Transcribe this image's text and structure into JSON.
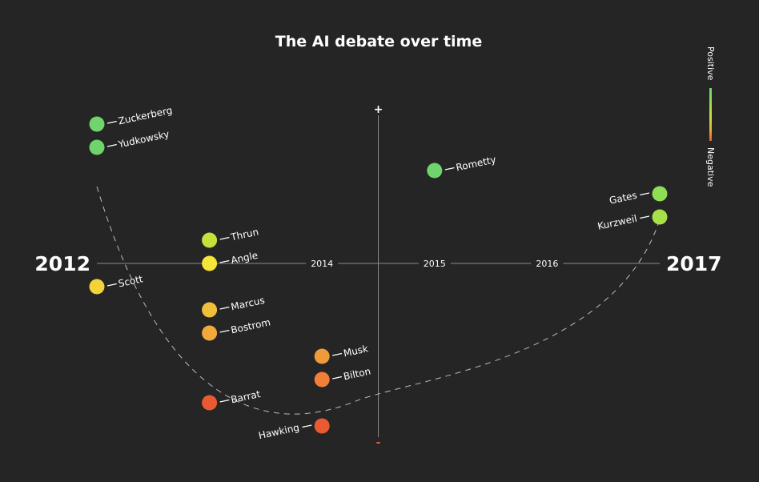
{
  "chart_data": {
    "type": "scatter",
    "title": "The AI debate over time",
    "x_ticks": [
      {
        "year": 2012,
        "label": "2012",
        "style": "big"
      },
      {
        "year": 2014,
        "label": "2014",
        "style": "small"
      },
      {
        "year": 2015,
        "label": "2015",
        "style": "small"
      },
      {
        "year": 2016,
        "label": "2016",
        "style": "small"
      },
      {
        "year": 2017,
        "label": "2017",
        "style": "big"
      }
    ],
    "xlim": [
      2012,
      2017
    ],
    "ylim": [
      -4,
      4
    ],
    "y_axis_year": 2014.5,
    "y_axis_top_label": "+",
    "y_axis_bottom_label": "-",
    "legend": {
      "positive": "Positive",
      "negative": "Negative",
      "placement": "top-right"
    },
    "points": [
      {
        "name": "Zuckerberg",
        "year": 2012,
        "sentiment": 3.0,
        "color": "#6fd46b",
        "label_side": "right"
      },
      {
        "name": "Yudkowsky",
        "year": 2012,
        "sentiment": 2.5,
        "color": "#6fd46b",
        "label_side": "right"
      },
      {
        "name": "Scott",
        "year": 2012,
        "sentiment": -0.5,
        "color": "#f2d33a",
        "label_side": "right"
      },
      {
        "name": "Thrun",
        "year": 2013,
        "sentiment": 0.5,
        "color": "#c3e23a",
        "label_side": "right"
      },
      {
        "name": "Angle",
        "year": 2013,
        "sentiment": 0.0,
        "color": "#f4e53a",
        "label_side": "right"
      },
      {
        "name": "Marcus",
        "year": 2013,
        "sentiment": -1.0,
        "color": "#f0c03a",
        "label_side": "right"
      },
      {
        "name": "Bostrom",
        "year": 2013,
        "sentiment": -1.5,
        "color": "#f0a93a",
        "label_side": "right"
      },
      {
        "name": "Barrat",
        "year": 2013,
        "sentiment": -3.0,
        "color": "#ea5a32",
        "label_side": "right"
      },
      {
        "name": "Musk",
        "year": 2014,
        "sentiment": -2.0,
        "color": "#f09a3a",
        "label_side": "right"
      },
      {
        "name": "Bilton",
        "year": 2014,
        "sentiment": -2.5,
        "color": "#f08038",
        "label_side": "right"
      },
      {
        "name": "Hawking",
        "year": 2014,
        "sentiment": -3.5,
        "color": "#ea5a32",
        "label_side": "left"
      },
      {
        "name": "Rometty",
        "year": 2015,
        "sentiment": 2.0,
        "color": "#6fd46b",
        "label_side": "right"
      },
      {
        "name": "Gates",
        "year": 2017,
        "sentiment": 1.5,
        "color": "#8fdc55",
        "label_side": "left"
      },
      {
        "name": "Kurzweil",
        "year": 2017,
        "sentiment": 1.0,
        "color": "#a8e04a",
        "label_side": "left"
      }
    ]
  }
}
